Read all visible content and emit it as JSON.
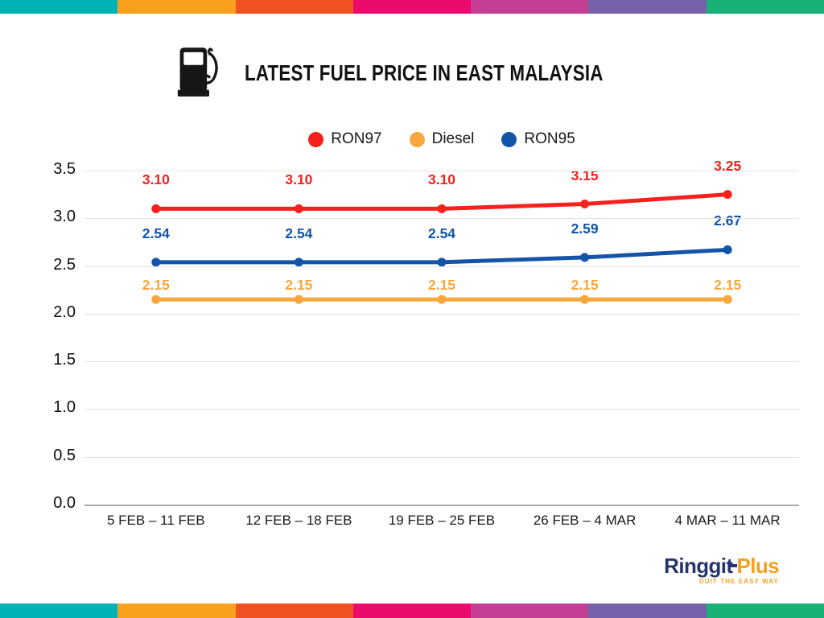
{
  "stripes": {
    "colors": [
      "#00b2b6",
      "#f9a11f",
      "#ef5223",
      "#ec0b6c",
      "#c43e96",
      "#7861ab",
      "#18b277"
    ]
  },
  "header": {
    "title": "LATEST FUEL PRICE IN EAST MALAYSIA",
    "icon": "fuel-pump-icon"
  },
  "chart_data": {
    "type": "line",
    "title": "LATEST FUEL PRICE IN EAST MALAYSIA",
    "categories": [
      "5 FEB – 11 FEB",
      "12 FEB – 18 FEB",
      "19 FEB – 25 FEB",
      "26 FEB – 4 MAR",
      "4 MAR – 11 MAR"
    ],
    "series": [
      {
        "name": "RON97",
        "color": "#f5211d",
        "values": [
          3.1,
          3.1,
          3.1,
          3.15,
          3.25
        ]
      },
      {
        "name": "Diesel",
        "color": "#f8a73f",
        "values": [
          2.15,
          2.15,
          2.15,
          2.15,
          2.15
        ]
      },
      {
        "name": "RON95",
        "color": "#1454a8",
        "values": [
          2.54,
          2.54,
          2.54,
          2.59,
          2.67
        ]
      }
    ],
    "yticks": [
      3.5,
      3.0,
      2.5,
      2.0,
      1.5,
      1.0,
      0.5,
      0.0
    ],
    "ylim": [
      0,
      3.5
    ],
    "xlabel": "",
    "ylabel": "",
    "grid": true,
    "legend_position": "top",
    "value_labels": "shown above each point, 2 decimal places, colored per series",
    "grid_color": "#e3e3e3",
    "axis_color": "#ababab"
  },
  "footer": {
    "logo": {
      "ringgit": "Ringgit",
      "plus": "Plus",
      "tagline": "DUIT THE EASY WAY",
      "navy": "#26356b",
      "orange": "#f4a01f"
    }
  }
}
